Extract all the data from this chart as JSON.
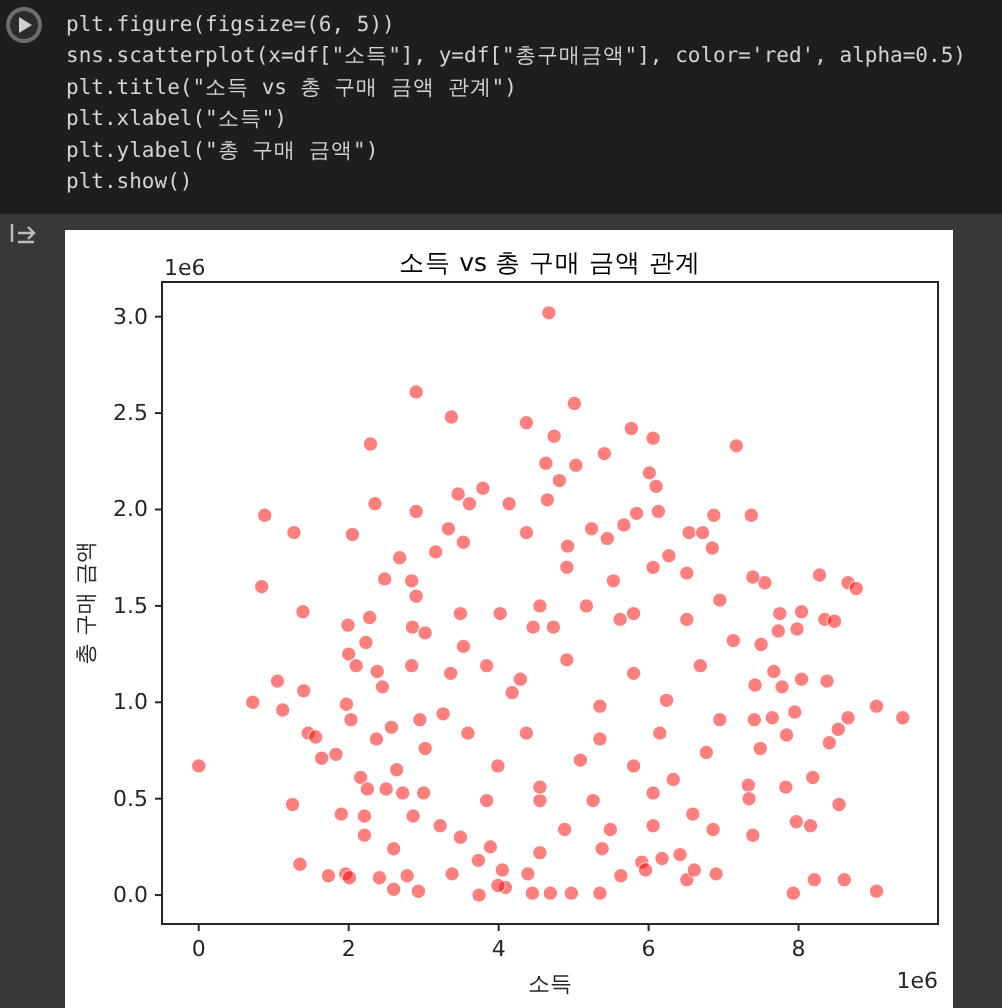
{
  "chart_data": [
    {
      "type": "other",
      "annotations": [
        "plt.figure(figsize=(6, 5))",
        "sns.scatterplot(x=df[\"소득\"], y=df[\"총구매금액\"], color='red', alpha=0.5)",
        "plt.title(\"소득 vs 총 구매 금액 관계\")",
        "plt.xlabel(\"소득\")",
        "plt.ylabel(\"총 구매 금액\")",
        "plt.show()"
      ]
    },
    {
      "type": "scatter",
      "title": "소득 vs 총 구매 금액 관계",
      "xlabel": "소득",
      "ylabel": "총 구매 금액",
      "marker": "circle",
      "xlim": [
        -0.49,
        9.86
      ],
      "ylim": [
        -0.15,
        3.18
      ],
      "xticks": [
        0,
        2,
        4,
        6,
        8
      ],
      "yticks": [
        {
          "value": 0,
          "label": "0.0"
        },
        {
          "value": 0.5,
          "label": "0.5"
        },
        {
          "value": 1,
          "label": "1.0"
        },
        {
          "value": 1.5,
          "label": "1.5"
        },
        {
          "value": 2,
          "label": "2.0"
        },
        {
          "value": 2.5,
          "label": "2.5"
        },
        {
          "value": 3,
          "label": "3.0"
        }
      ],
      "annotations": [
        "1e6",
        "1e6"
      ],
      "series": [
        {
          "color": "#ff0000",
          "x": [
            4.67,
            2.9,
            3.37,
            2.29,
            4.37,
            4.74,
            0.88,
            1.27,
            0.84,
            2.05,
            2.35,
            2.9,
            2.48,
            1.39,
            3.46,
            3.79,
            3.61,
            4.14,
            4.63,
            2.68,
            2.84,
            2.9,
            3.33,
            3.53,
            3.16,
            5.01,
            5.77,
            6.06,
            7.17,
            5.41,
            5.03,
            4.81,
            6.01,
            6.1,
            4.65,
            5.84,
            6.13,
            6.87,
            7.37,
            5.67,
            6.54,
            6.72,
            6.85,
            8.28,
            8.66,
            8.77,
            7.55,
            7.39,
            6.27,
            5.45,
            4.92,
            5.24,
            7.75,
            8.04,
            8.35,
            8.48,
            7.73,
            7.98,
            7.5,
            7.67,
            8.04,
            8.38,
            7.78,
            7.42,
            7.95,
            7.65,
            9.04,
            9.39,
            8.66,
            8.53,
            8.41,
            7.84,
            7.41,
            7.49,
            8.19,
            7.83,
            7.33,
            7.34,
            8.54,
            7.97,
            8.16,
            7.39,
            6.9,
            7.93,
            8.21,
            8.61,
            9.04,
            6.51,
            6.61,
            6.18,
            5.91,
            5.63,
            5.35,
            4.97,
            4.69,
            4.45,
            4.09,
            5.38,
            5.96,
            6.42,
            6.86,
            6.06,
            5.49,
            4.88,
            4.39,
            4.55,
            0.0,
            0.72,
            1.05,
            1.12,
            1.4,
            1.25,
            1.35,
            1.73,
            1.96,
            2.01,
            1.9,
            1.64,
            1.83,
            1.46,
            1.56,
            1.99,
            2.0,
            2.28,
            1.97,
            2.03,
            2.21,
            2.21,
            2.41,
            2.6,
            2.78,
            2.93,
            2.6,
            2.16,
            2.25,
            2.5,
            2.37,
            2.57,
            2.64,
            2.72,
            3.0,
            2.86,
            3.22,
            3.38,
            3.74,
            3.99,
            4.05,
            3.49,
            3.73,
            3.89,
            2.23,
            2.38,
            2.1,
            2.45,
            2.84,
            2.85,
            3.02,
            2.95,
            3.26,
            3.02,
            3.36,
            3.53,
            3.84,
            3.59,
            3.99,
            4.18,
            4.37,
            4.55,
            4.46,
            3.49,
            4.02,
            3.84,
            4.29,
            4.91,
            5.35,
            5.8,
            6.24,
            6.69,
            6.95,
            7.13,
            6.51,
            5.62,
            4.73,
            5.09,
            5.8,
            6.33,
            6.77,
            5.26,
            6.06,
            6.59,
            4.55,
            5.35,
            6.15,
            4.37,
            4.91,
            5.53,
            6.06,
            6.51,
            6.95,
            4.55,
            5.17,
            5.8
          ],
          "values": [
            3.02,
            2.61,
            2.48,
            2.34,
            2.45,
            2.38,
            1.97,
            1.88,
            1.6,
            1.87,
            2.03,
            1.99,
            1.64,
            1.47,
            2.08,
            2.11,
            2.03,
            2.03,
            2.24,
            1.75,
            1.63,
            1.55,
            1.9,
            1.83,
            1.78,
            2.55,
            2.42,
            2.37,
            2.33,
            2.29,
            2.23,
            2.15,
            2.19,
            2.12,
            2.05,
            1.98,
            1.99,
            1.97,
            1.97,
            1.92,
            1.88,
            1.88,
            1.8,
            1.66,
            1.62,
            1.59,
            1.62,
            1.65,
            1.76,
            1.85,
            1.81,
            1.9,
            1.46,
            1.47,
            1.43,
            1.42,
            1.37,
            1.38,
            1.3,
            1.16,
            1.12,
            1.11,
            1.08,
            1.09,
            0.95,
            0.92,
            0.98,
            0.92,
            0.92,
            0.86,
            0.79,
            0.83,
            0.91,
            0.76,
            0.61,
            0.56,
            0.57,
            0.5,
            0.47,
            0.38,
            0.36,
            0.31,
            0.11,
            0.01,
            0.08,
            0.08,
            0.02,
            0.08,
            0.13,
            0.19,
            0.17,
            0.1,
            0.01,
            0.01,
            0.01,
            0.01,
            0.04,
            0.24,
            0.13,
            0.21,
            0.34,
            0.36,
            0.34,
            0.34,
            0.11,
            0.22,
            0.67,
            1.0,
            1.11,
            0.96,
            1.06,
            0.47,
            0.16,
            0.1,
            0.11,
            0.09,
            0.42,
            0.71,
            0.73,
            0.84,
            0.82,
            1.4,
            1.25,
            1.44,
            0.99,
            0.91,
            0.31,
            0.41,
            0.09,
            0.03,
            0.1,
            0.02,
            0.24,
            0.61,
            0.55,
            0.55,
            0.81,
            0.87,
            0.65,
            0.53,
            0.53,
            0.41,
            0.36,
            0.11,
            0.0,
            0.05,
            0.13,
            0.3,
            0.18,
            0.25,
            1.31,
            1.16,
            1.19,
            1.08,
            1.19,
            1.39,
            1.36,
            0.91,
            0.94,
            0.76,
            1.15,
            1.29,
            1.19,
            0.84,
            0.67,
            1.05,
            0.84,
            0.49,
            1.39,
            1.46,
            1.46,
            0.49,
            1.12,
            1.22,
            0.98,
            1.15,
            1.01,
            1.19,
            0.91,
            1.32,
            1.43,
            1.43,
            1.39,
            0.7,
            0.67,
            0.6,
            0.74,
            0.49,
            0.53,
            0.42,
            0.56,
            0.81,
            0.84,
            1.88,
            1.7,
            1.63,
            1.7,
            1.67,
            1.53,
            1.5,
            1.5,
            1.46
          ]
        }
      ]
    }
  ]
}
